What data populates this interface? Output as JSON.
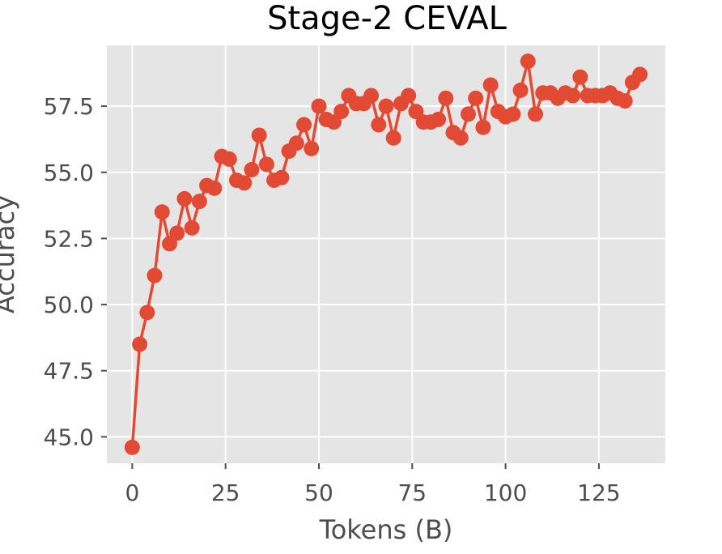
{
  "chart_data": {
    "type": "line",
    "title": "Stage-2 CEVAL",
    "xlabel": "Tokens (B)",
    "ylabel": "Accuracy",
    "xlim": [
      -6.8,
      142.8
    ],
    "ylim": [
      44.0,
      59.8
    ],
    "xticks": [
      0,
      25,
      50,
      75,
      100,
      125
    ],
    "xtick_labels": [
      "0",
      "25",
      "50",
      "75",
      "100",
      "125"
    ],
    "yticks": [
      45.0,
      47.5,
      50.0,
      52.5,
      55.0,
      57.5
    ],
    "ytick_labels": [
      "45.0",
      "47.5",
      "50.0",
      "52.5",
      "55.0",
      "57.5"
    ],
    "grid": true,
    "marker": "circle",
    "colors": {
      "background": "#e5e5e5",
      "grid": "#ffffff",
      "series": "#e24a33",
      "text": "#4d4d4d",
      "title": "#000000"
    },
    "series": [
      {
        "x": [
          0,
          2,
          4,
          6,
          8,
          10,
          12,
          14,
          16,
          18,
          20,
          22,
          24,
          26,
          28,
          30,
          32,
          34,
          36,
          38,
          40,
          42,
          44,
          46,
          48,
          50,
          52,
          54,
          56,
          58,
          60,
          62,
          64,
          66,
          68,
          70,
          72,
          74,
          76,
          78,
          80,
          82,
          84,
          86,
          88,
          90,
          92,
          94,
          96,
          98,
          100,
          102,
          104,
          106,
          108,
          110,
          112,
          114,
          116,
          118,
          120,
          122,
          124,
          126,
          128,
          130,
          132,
          134,
          136
        ],
        "y": [
          44.6,
          48.5,
          49.7,
          51.1,
          53.5,
          52.3,
          52.7,
          54.0,
          52.9,
          53.9,
          54.5,
          54.4,
          55.6,
          55.5,
          54.7,
          54.6,
          55.1,
          56.4,
          55.3,
          54.7,
          54.8,
          55.8,
          56.1,
          56.8,
          55.9,
          57.5,
          57.0,
          56.9,
          57.3,
          57.9,
          57.6,
          57.6,
          57.9,
          56.8,
          57.5,
          56.3,
          57.6,
          57.9,
          57.3,
          56.9,
          56.9,
          57.0,
          57.8,
          56.5,
          56.3,
          57.2,
          57.8,
          56.7,
          58.3,
          57.3,
          57.1,
          57.2,
          58.1,
          59.2,
          57.2,
          58.0,
          58.0,
          57.8,
          58.0,
          57.9,
          58.6,
          57.9,
          57.9,
          57.9,
          58.0,
          57.8,
          57.7,
          58.4,
          58.7
        ]
      }
    ]
  }
}
